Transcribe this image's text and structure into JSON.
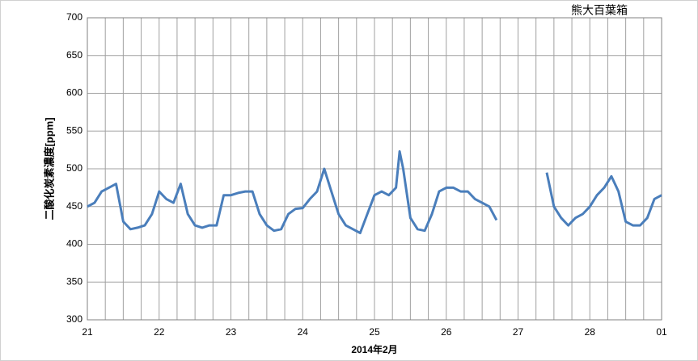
{
  "chart_data": {
    "type": "line",
    "title": "熊大百葉箱",
    "x_label": "2014年2月",
    "y_label": "二酸化炭素濃度[ppm]",
    "x": [
      21.0,
      21.1,
      21.2,
      21.3,
      21.4,
      21.5,
      21.6,
      21.7,
      21.8,
      21.9,
      22.0,
      22.1,
      22.2,
      22.3,
      22.4,
      22.5,
      22.6,
      22.7,
      22.8,
      22.9,
      23.0,
      23.1,
      23.2,
      23.3,
      23.4,
      23.5,
      23.6,
      23.7,
      23.8,
      23.9,
      24.0,
      24.1,
      24.2,
      24.3,
      24.4,
      24.5,
      24.6,
      24.7,
      24.8,
      24.9,
      25.0,
      25.1,
      25.2,
      25.3,
      25.35,
      25.4,
      25.5,
      25.6,
      25.7,
      25.8,
      25.9,
      26.0,
      26.1,
      26.2,
      26.3,
      26.4,
      26.5,
      26.6,
      26.7,
      26.8,
      26.9,
      27.0,
      27.1,
      27.2,
      27.3,
      27.4,
      27.5,
      27.6,
      27.7,
      27.8,
      27.9,
      28.0,
      28.1,
      28.2,
      28.3,
      28.4,
      28.5,
      28.6,
      28.7,
      28.8,
      28.9,
      29.0
    ],
    "values": [
      450,
      455,
      470,
      475,
      480,
      430,
      420,
      422,
      425,
      440,
      470,
      460,
      455,
      480,
      440,
      425,
      422,
      425,
      425,
      465,
      465,
      468,
      470,
      470,
      440,
      425,
      418,
      420,
      440,
      447,
      448,
      460,
      470,
      500,
      470,
      440,
      425,
      420,
      415,
      440,
      465,
      470,
      465,
      475,
      523,
      500,
      435,
      420,
      418,
      440,
      470,
      475,
      475,
      470,
      470,
      460,
      455,
      450,
      432,
      null,
      null,
      null,
      null,
      null,
      null,
      495,
      450,
      435,
      425,
      435,
      440,
      450,
      465,
      475,
      490,
      470,
      430,
      425,
      425,
      435,
      460,
      465
    ],
    "color": "#4a7ebb",
    "xlim": [
      21,
      29
    ],
    "xticks": [
      21,
      22,
      23,
      24,
      25,
      26,
      27,
      28,
      {
        "value": 29,
        "label": "01"
      }
    ],
    "x_minor_ticks": [
      21.25,
      21.5,
      21.75,
      22.25,
      22.5,
      22.75,
      23.25,
      23.5,
      23.75,
      24.25,
      24.5,
      24.75,
      25.25,
      25.5,
      25.75,
      26.25,
      26.5,
      26.75,
      27.25,
      27.5,
      27.75,
      28.25,
      28.5,
      28.75
    ],
    "ylim": [
      300,
      700
    ],
    "yticks": [
      300,
      350,
      400,
      450,
      500,
      550,
      600,
      650,
      700
    ],
    "grid": true
  }
}
